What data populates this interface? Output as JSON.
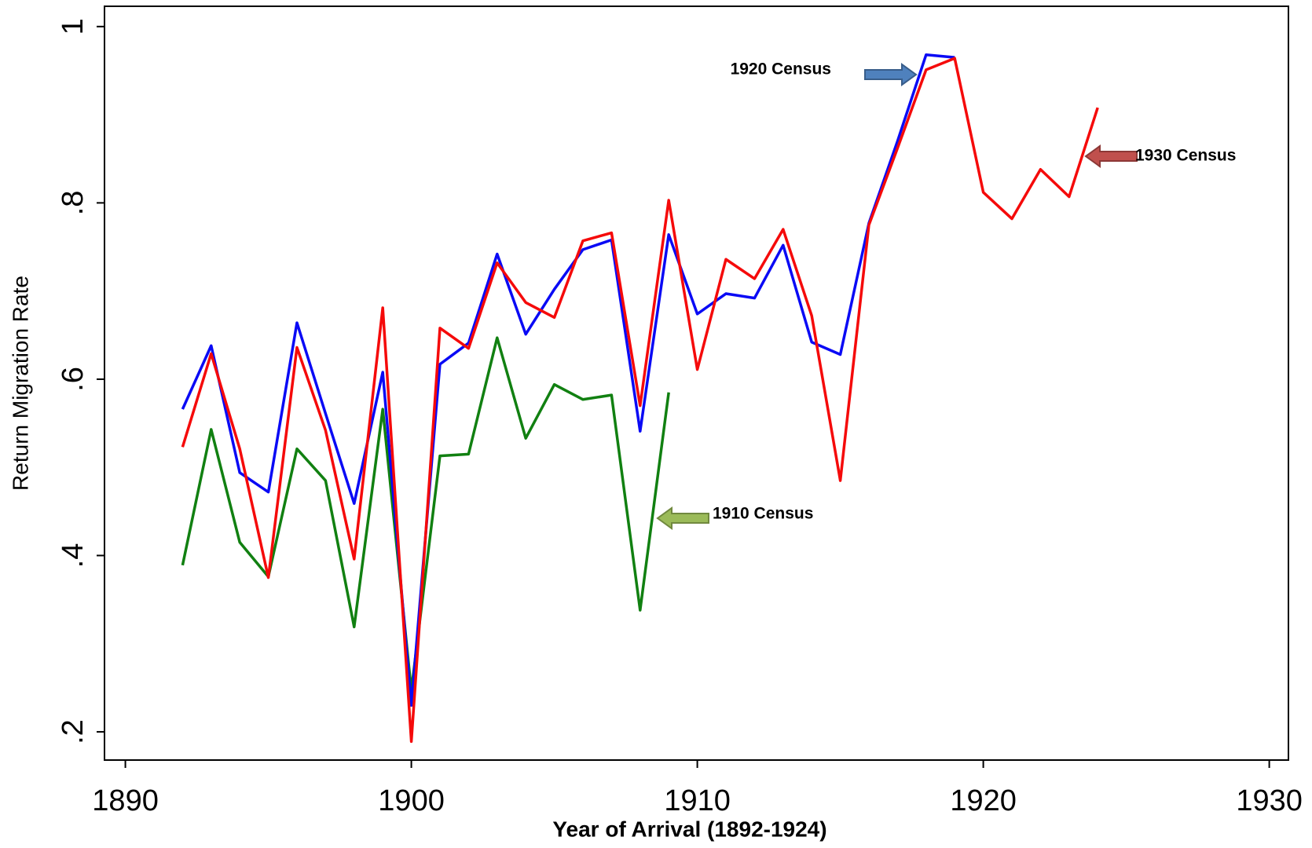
{
  "chart_data": {
    "type": "line",
    "x_label": "Year of Arrival (1892-1924)",
    "y_label": "Return Migration Rate",
    "x": [
      1892,
      1893,
      1894,
      1895,
      1896,
      1897,
      1898,
      1899,
      1900,
      1901,
      1902,
      1903,
      1904,
      1905,
      1906,
      1907,
      1908,
      1909,
      1910,
      1911,
      1912,
      1913,
      1914,
      1915,
      1916,
      1917,
      1918,
      1919,
      1920,
      1921,
      1922,
      1923,
      1924
    ],
    "series": [
      {
        "name": "1910 Census",
        "color": "#118011",
        "values": [
          0.389,
          0.543,
          0.415,
          0.376,
          0.521,
          0.485,
          0.319,
          0.566,
          0.247,
          0.513,
          0.515,
          0.647,
          0.533,
          0.594,
          0.577,
          0.582,
          0.338,
          0.585,
          null,
          null,
          null,
          null,
          null,
          null,
          null,
          null,
          null,
          null,
          null,
          null,
          null,
          null,
          null
        ]
      },
      {
        "name": "1920 Census",
        "color": "#0a0af5",
        "values": [
          0.566,
          0.638,
          0.494,
          0.472,
          0.664,
          0.561,
          0.459,
          0.608,
          0.23,
          0.617,
          0.641,
          0.742,
          0.651,
          0.702,
          0.747,
          0.758,
          0.541,
          0.764,
          0.674,
          0.697,
          0.692,
          0.752,
          0.642,
          0.628,
          0.777,
          0.87,
          0.968,
          0.965,
          null,
          null,
          null,
          null,
          null
        ]
      },
      {
        "name": "1930 Census",
        "color": "#f50a0a",
        "values": [
          0.523,
          0.629,
          0.521,
          0.375,
          0.636,
          0.542,
          0.396,
          0.681,
          0.189,
          0.658,
          0.635,
          0.732,
          0.687,
          0.67,
          0.757,
          0.766,
          0.57,
          0.803,
          0.611,
          0.736,
          0.714,
          0.77,
          0.672,
          0.485,
          0.775,
          0.862,
          0.951,
          0.964,
          0.812,
          0.782,
          0.838,
          0.807,
          0.908
        ]
      }
    ],
    "xlim": [
      1889.27,
      1930.67
    ],
    "xticks": [
      1890,
      1900,
      1910,
      1920,
      1930
    ],
    "ylim": [
      0.168,
      1.023
    ],
    "yticks": [
      {
        "value": 0.2,
        "label": ".2"
      },
      {
        "value": 0.4,
        "label": ".4"
      },
      {
        "value": 0.6,
        "label": ".6"
      },
      {
        "value": 0.8,
        "label": ".8"
      },
      1
    ]
  }
}
